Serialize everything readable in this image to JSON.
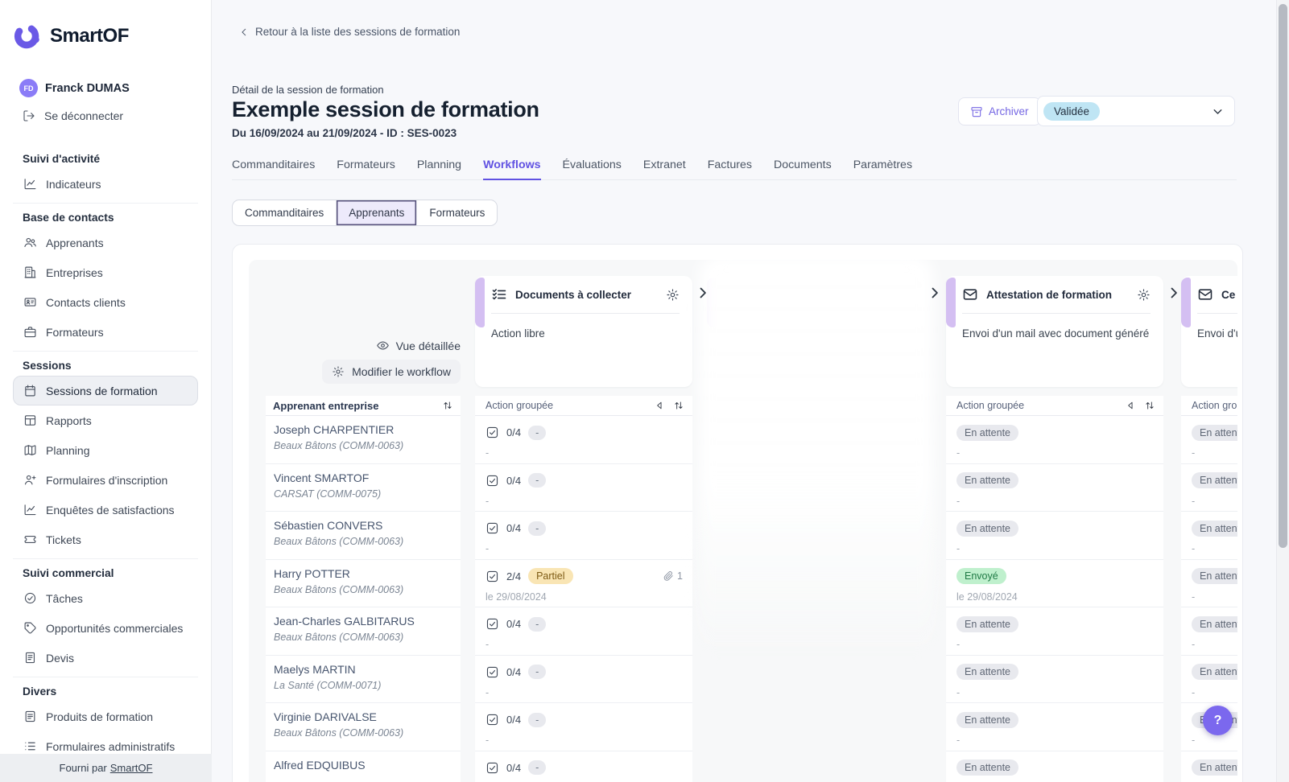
{
  "colors": {
    "brand_purple": "#6a59e6",
    "accent_bar": "#d4bff2",
    "status_validated_bg": "#bfe5f4",
    "status_partial_bg": "#f9e5b4",
    "status_sent_bg": "#bff0cd",
    "status_pending_bg": "#e9eaee"
  },
  "sidebar": {
    "logo_text": "SmartOF",
    "user": {
      "initials": "FD",
      "name": "Franck DUMAS"
    },
    "logout_label": "Se déconnecter",
    "sections": [
      {
        "title": "Suivi d'activité",
        "items": [
          {
            "label": "Indicateurs",
            "icon": "chart-line-icon"
          }
        ]
      },
      {
        "title": "Base de contacts",
        "items": [
          {
            "label": "Apprenants",
            "icon": "users-icon"
          },
          {
            "label": "Entreprises",
            "icon": "building-icon"
          },
          {
            "label": "Contacts clients",
            "icon": "id-card-icon"
          },
          {
            "label": "Formateurs",
            "icon": "briefcase-icon"
          }
        ]
      },
      {
        "title": "Sessions",
        "items": [
          {
            "label": "Sessions de formation",
            "icon": "calendar-icon",
            "active": true
          },
          {
            "label": "Rapports",
            "icon": "grid-icon"
          },
          {
            "label": "Planning",
            "icon": "map-icon"
          },
          {
            "label": "Formulaires d'inscription",
            "icon": "user-plus-icon"
          },
          {
            "label": "Enquêtes de satisfactions",
            "icon": "chart-line-icon"
          },
          {
            "label": "Tickets",
            "icon": "ticket-icon"
          }
        ]
      },
      {
        "title": "Suivi commercial",
        "items": [
          {
            "label": "Tâches",
            "icon": "check-circle-icon"
          },
          {
            "label": "Opportunités commerciales",
            "icon": "tag-icon"
          },
          {
            "label": "Devis",
            "icon": "receipt-icon"
          }
        ]
      },
      {
        "title": "Divers",
        "items": [
          {
            "label": "Produits de formation",
            "icon": "file-lines-icon"
          },
          {
            "label": "Formulaires administratifs",
            "icon": "list-icon"
          }
        ]
      }
    ],
    "footer": {
      "prefix": "Fourni par",
      "link_label": "SmartOF"
    }
  },
  "header": {
    "back_label": "Retour à la liste des sessions de formation",
    "eyebrow": "Détail de la session de formation",
    "title": "Exemple session de formation",
    "subtitle": "Du 16/09/2024 au 21/09/2024 - ID : SES-0023",
    "archive_label": "Archiver",
    "status_value": "Validée"
  },
  "tabs": [
    {
      "label": "Commanditaires"
    },
    {
      "label": "Formateurs"
    },
    {
      "label": "Planning"
    },
    {
      "label": "Workflows",
      "active": true
    },
    {
      "label": "Évaluations"
    },
    {
      "label": "Extranet"
    },
    {
      "label": "Factures"
    },
    {
      "label": "Documents"
    },
    {
      "label": "Paramètres"
    }
  ],
  "subtabs": [
    {
      "label": "Commanditaires"
    },
    {
      "label": "Apprenants",
      "active": true
    },
    {
      "label": "Formateurs"
    }
  ],
  "board": {
    "view_detail_label": "Vue détaillée",
    "edit_workflow_label": "Modifier le workflow",
    "learner_header": "Apprenant entreprise",
    "group_action_label": "Action groupée",
    "columns": [
      {
        "key": "docs",
        "title": "Documents à collecter",
        "icon": "checklist-icon",
        "subtitle": "Action libre",
        "type": "checklist"
      },
      {
        "key": "hidden",
        "type": "blurred"
      },
      {
        "key": "attestation",
        "title": "Attestation de formation",
        "icon": "mail-icon",
        "subtitle": "Envoi d'un mail avec document généré",
        "type": "status"
      },
      {
        "key": "certificate",
        "title": "Ce",
        "icon": "mail-icon",
        "subtitle": "Envoi d'u",
        "type": "status"
      }
    ],
    "rows": [
      {
        "name": "Joseph CHARPENTIER",
        "company": "Beaux Bâtons (COMM-0063)",
        "docs": {
          "count": "0/4",
          "pill": "-",
          "pill_type": "neutral",
          "sub": "-"
        },
        "attestation": {
          "pill": "En attente",
          "pill_type": "pending",
          "sub": "-"
        },
        "certificate": {
          "pill": "En attente",
          "pill_type": "pending",
          "sub": "-"
        }
      },
      {
        "name": "Vincent SMARTOF",
        "company": "CARSAT (COMM-0075)",
        "docs": {
          "count": "0/4",
          "pill": "-",
          "pill_type": "neutral",
          "sub": "-"
        },
        "attestation": {
          "pill": "En attente",
          "pill_type": "pending",
          "sub": "-"
        },
        "certificate": {
          "pill": "En attente",
          "pill_type": "pending",
          "sub": "-"
        }
      },
      {
        "name": "Sébastien CONVERS",
        "company": "Beaux Bâtons (COMM-0063)",
        "docs": {
          "count": "0/4",
          "pill": "-",
          "pill_type": "neutral",
          "sub": "-"
        },
        "attestation": {
          "pill": "En attente",
          "pill_type": "pending",
          "sub": "-"
        },
        "certificate": {
          "pill": "En attente",
          "pill_type": "pending",
          "sub": "-"
        }
      },
      {
        "name": "Harry POTTER",
        "company": "Beaux Bâtons (COMM-0063)",
        "docs": {
          "count": "2/4",
          "pill": "Partiel",
          "pill_type": "partial",
          "sub": "le 29/08/2024",
          "attachments": "1"
        },
        "attestation": {
          "pill": "Envoyé",
          "pill_type": "sent",
          "sub": "le 29/08/2024"
        },
        "certificate": {
          "pill": "En attente",
          "pill_type": "pending",
          "sub": "-"
        }
      },
      {
        "name": "Jean-Charles GALBITARUS",
        "company": "Beaux Bâtons (COMM-0063)",
        "docs": {
          "count": "0/4",
          "pill": "-",
          "pill_type": "neutral",
          "sub": "-"
        },
        "attestation": {
          "pill": "En attente",
          "pill_type": "pending",
          "sub": "-"
        },
        "certificate": {
          "pill": "En attente",
          "pill_type": "pending",
          "sub": "-"
        }
      },
      {
        "name": "Maelys MARTIN",
        "company": "La Santé (COMM-0071)",
        "docs": {
          "count": "0/4",
          "pill": "-",
          "pill_type": "neutral",
          "sub": "-"
        },
        "attestation": {
          "pill": "En attente",
          "pill_type": "pending",
          "sub": "-"
        },
        "certificate": {
          "pill": "En attente",
          "pill_type": "pending",
          "sub": "-"
        }
      },
      {
        "name": "Virginie DARIVALSE",
        "company": "Beaux Bâtons (COMM-0063)",
        "docs": {
          "count": "0/4",
          "pill": "-",
          "pill_type": "neutral",
          "sub": "-"
        },
        "attestation": {
          "pill": "En attente",
          "pill_type": "pending",
          "sub": "-"
        },
        "certificate": {
          "pill": "En attente",
          "pill_type": "pending",
          "sub": "-"
        }
      },
      {
        "name": "Alfred EDQUIBUS",
        "company": "",
        "docs": {
          "count": "0/4",
          "pill": "-",
          "pill_type": "neutral",
          "sub": "-"
        },
        "attestation": {
          "pill": "En attente",
          "pill_type": "pending",
          "sub": "-"
        },
        "certificate": {
          "pill": "En attente",
          "pill_type": "pending",
          "sub": "-"
        }
      }
    ]
  },
  "help_label": "?"
}
